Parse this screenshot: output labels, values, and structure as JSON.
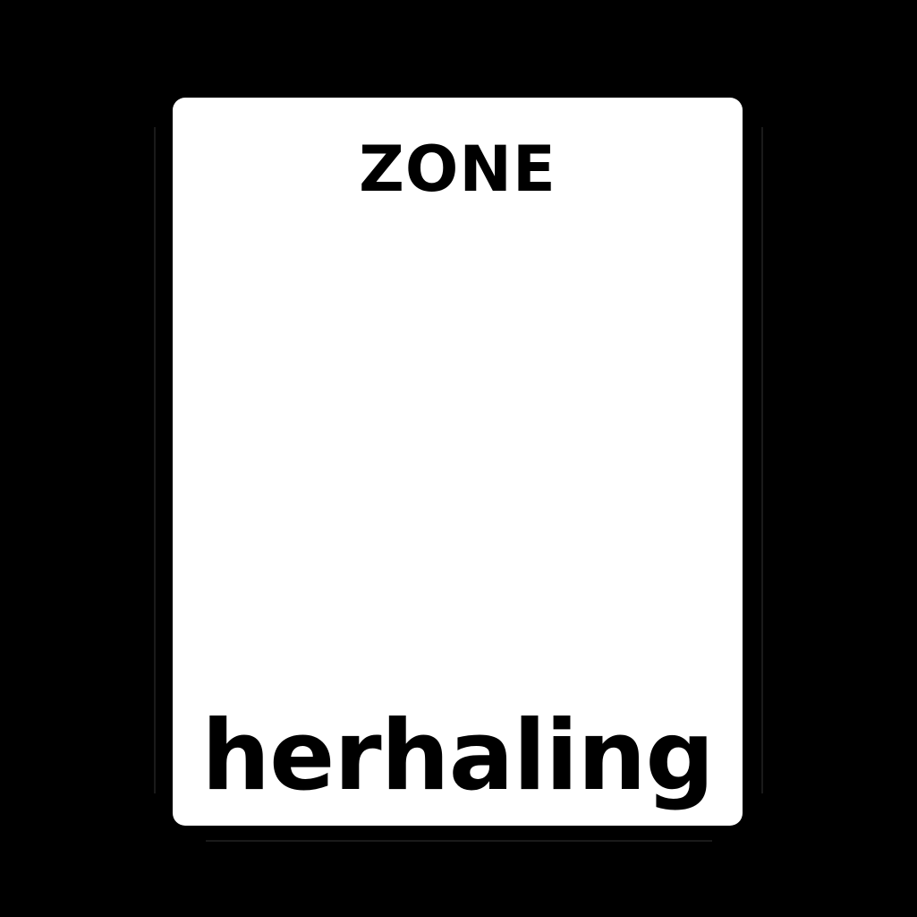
{
  "sign": {
    "top_text": "ZONE",
    "bottom_text": "herhaling",
    "background_color": "#ffffff",
    "text_color": "#000000"
  },
  "page": {
    "background_color": "#000000"
  }
}
